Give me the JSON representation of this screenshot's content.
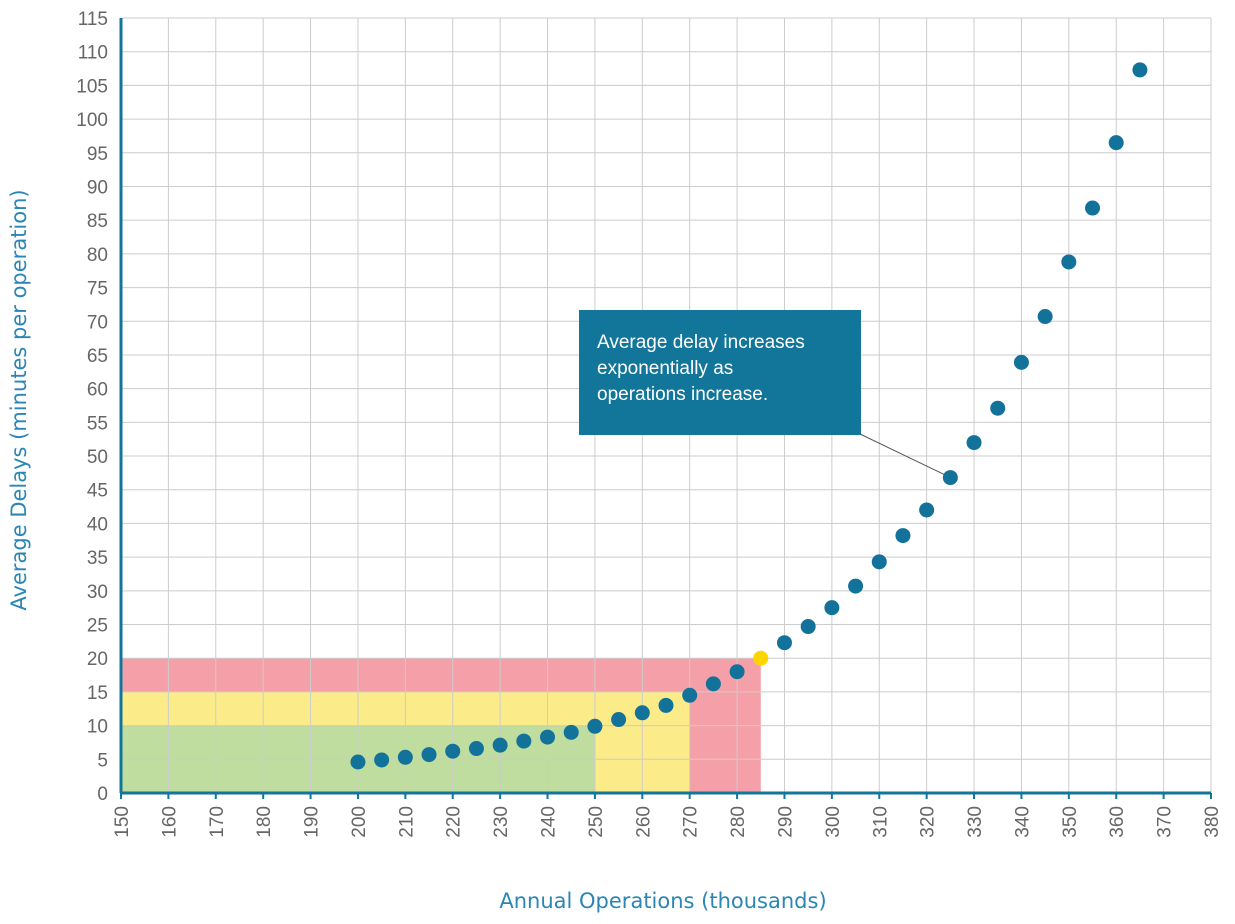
{
  "colors": {
    "point": "#12729a",
    "highlight_point": "#ffd500",
    "axis": "#12759a",
    "axis_title": "#2a86b4",
    "grid": "#cccccc",
    "zone_green": "#bedd9f",
    "zone_yellow": "#fbeb89",
    "zone_red": "#f5a0a8",
    "callout_bg": "#12759a",
    "callout_text": "#ffffff"
  },
  "chart_data": {
    "type": "scatter",
    "xlabel": "Annual Operations (thousands)",
    "ylabel": "Average Delays (minutes per operation)",
    "xlim": [
      150,
      380
    ],
    "ylim": [
      0,
      115
    ],
    "x_ticks": [
      "150",
      "160",
      "170",
      "180",
      "190",
      "200",
      "210",
      "220",
      "230",
      "240",
      "250",
      "260",
      "270",
      "280",
      "290",
      "300",
      "310",
      "320",
      "330",
      "340",
      "350",
      "360",
      "370",
      "380"
    ],
    "y_ticks": [
      "0",
      "5",
      "10",
      "15",
      "20",
      "25",
      "30",
      "35",
      "40",
      "45",
      "50",
      "55",
      "60",
      "65",
      "70",
      "75",
      "80",
      "85",
      "90",
      "95",
      "100",
      "105",
      "110",
      "115"
    ],
    "grid": "on",
    "zones": [
      {
        "color": "red",
        "x": [
          150,
          285
        ],
        "y": [
          0,
          20
        ]
      },
      {
        "color": "yellow",
        "x": [
          150,
          270
        ],
        "y": [
          0,
          15
        ]
      },
      {
        "color": "green",
        "x": [
          150,
          250
        ],
        "y": [
          0,
          10
        ]
      }
    ],
    "series": [
      {
        "x": [
          200,
          205,
          210,
          215,
          220,
          225,
          230,
          235,
          240,
          245,
          250,
          255,
          260,
          265,
          270,
          275,
          280,
          290,
          295,
          300,
          305,
          310,
          315,
          320,
          325,
          330,
          335,
          340,
          345,
          350,
          355,
          360,
          365
        ],
        "y": [
          4.6,
          4.9,
          5.3,
          5.7,
          6.2,
          6.6,
          7.1,
          7.7,
          8.3,
          9.0,
          9.9,
          10.9,
          11.9,
          13.0,
          14.5,
          16.2,
          18.0,
          22.3,
          24.7,
          27.5,
          30.7,
          34.3,
          38.2,
          42.0,
          46.8,
          52.0,
          57.1,
          63.9,
          70.7,
          78.8,
          86.8,
          96.5,
          107.3
        ]
      },
      {
        "x": [
          285
        ],
        "y": [
          20
        ]
      }
    ],
    "annotation": {
      "lines": [
        "Average delay increases",
        "exponentially as",
        "operations increase."
      ],
      "points_to": {
        "x": 325,
        "y": 46.8
      }
    }
  }
}
